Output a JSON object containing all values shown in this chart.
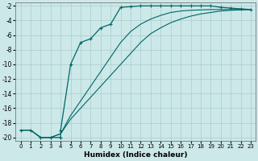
{
  "xlabel": "Humidex (Indice chaleur)",
  "background_color": "#cce8e8",
  "grid_color": "#aacccc",
  "line_color": "#006666",
  "xlim": [
    -0.5,
    23.5
  ],
  "ylim": [
    -20.5,
    -1.5
  ],
  "xticks": [
    0,
    1,
    2,
    3,
    4,
    5,
    6,
    7,
    8,
    9,
    10,
    11,
    12,
    13,
    14,
    15,
    16,
    17,
    18,
    19,
    20,
    21,
    22,
    23
  ],
  "yticks": [
    -2,
    -4,
    -6,
    -8,
    -10,
    -12,
    -14,
    -16,
    -18,
    -20
  ],
  "line1_x": [
    0,
    1,
    2,
    3,
    4,
    4,
    5,
    6,
    7,
    8,
    9,
    10,
    11,
    12,
    13,
    14,
    15,
    16,
    17,
    18,
    19,
    20,
    21,
    22,
    23
  ],
  "line1_y": [
    -19,
    -19,
    -20,
    -20,
    -20,
    -19,
    -10,
    -7,
    -6.5,
    -5,
    -4.5,
    -2.2,
    -2.1,
    -2.0,
    -2.0,
    -2.0,
    -2.0,
    -2.0,
    -2.0,
    -2.0,
    -2.0,
    -2.2,
    -2.3,
    -2.4,
    -2.5
  ],
  "line2_x": [
    0,
    1,
    2,
    3,
    4,
    5,
    6,
    7,
    8,
    9,
    10,
    11,
    12,
    13,
    14,
    15,
    16,
    17,
    18,
    19,
    20,
    21,
    22,
    23
  ],
  "line2_y": [
    -19,
    -19,
    -20,
    -20,
    -19.5,
    -17.5,
    -16,
    -14.5,
    -13,
    -11.5,
    -10,
    -8.5,
    -7,
    -5.8,
    -5,
    -4.3,
    -3.8,
    -3.4,
    -3.1,
    -2.9,
    -2.7,
    -2.6,
    -2.55,
    -2.5
  ],
  "line3_x": [
    0,
    1,
    2,
    3,
    4,
    5,
    6,
    7,
    8,
    9,
    10,
    11,
    12,
    13,
    14,
    15,
    16,
    17,
    18,
    19,
    20,
    21,
    22,
    23
  ],
  "line3_y": [
    -19,
    -19,
    -20,
    -20,
    -19.5,
    -17,
    -15,
    -13,
    -11,
    -9,
    -7,
    -5.5,
    -4.5,
    -3.8,
    -3.3,
    -2.9,
    -2.7,
    -2.6,
    -2.55,
    -2.5,
    -2.5,
    -2.5,
    -2.5,
    -2.5
  ]
}
